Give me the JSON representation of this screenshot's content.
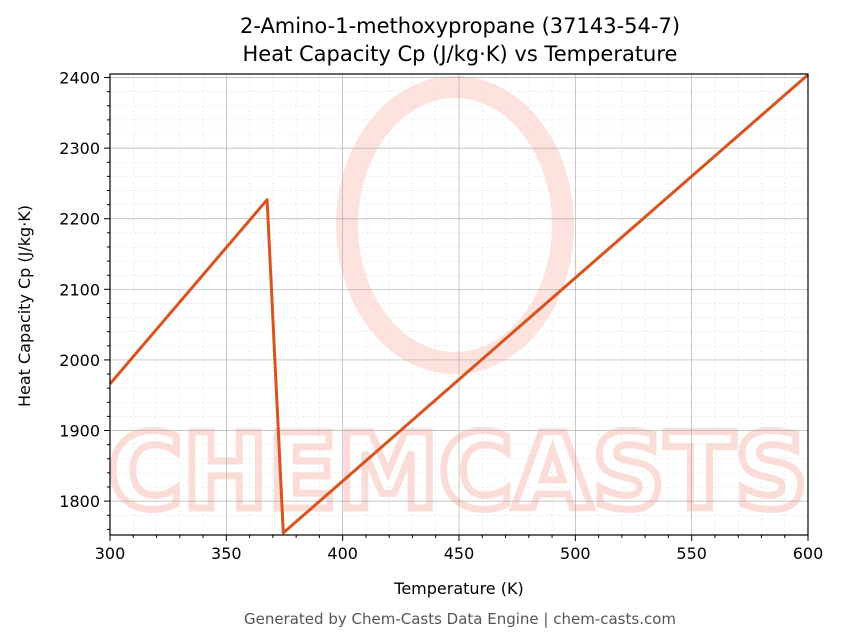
{
  "title_line1": "2-Amino-1-methoxypropane (37143-54-7)",
  "title_line2": "Heat Capacity Cp (J/kg·K) vs Temperature",
  "footer": "Generated by Chem-Casts Data Engine | chem-casts.com",
  "watermark_text": "CHEMCASTS",
  "colors": {
    "line": "#d9531e",
    "grid_major": "#b0b0b0",
    "grid_minor": "#e2e2e2",
    "watermark": "#fcd6cf"
  },
  "chart_data": {
    "type": "line",
    "title": "2-Amino-1-methoxypropane (37143-54-7)\nHeat Capacity Cp (J/kg·K) vs Temperature",
    "xlabel": "Temperature (K)",
    "ylabel": "Heat Capacity Cp (J/kg·K)",
    "xlim": [
      300,
      600
    ],
    "ylim": [
      1752,
      2405
    ],
    "xticks": [
      300,
      350,
      400,
      450,
      500,
      550,
      600
    ],
    "yticks": [
      1800,
      1900,
      2000,
      2100,
      2200,
      2300,
      2400
    ],
    "grid": true,
    "minor_grid": true,
    "legend": "none",
    "series": [
      {
        "x": [
          300,
          367.5,
          374.5,
          600
        ],
        "y": [
          1966,
          2227,
          1755,
          2404
        ]
      }
    ]
  }
}
